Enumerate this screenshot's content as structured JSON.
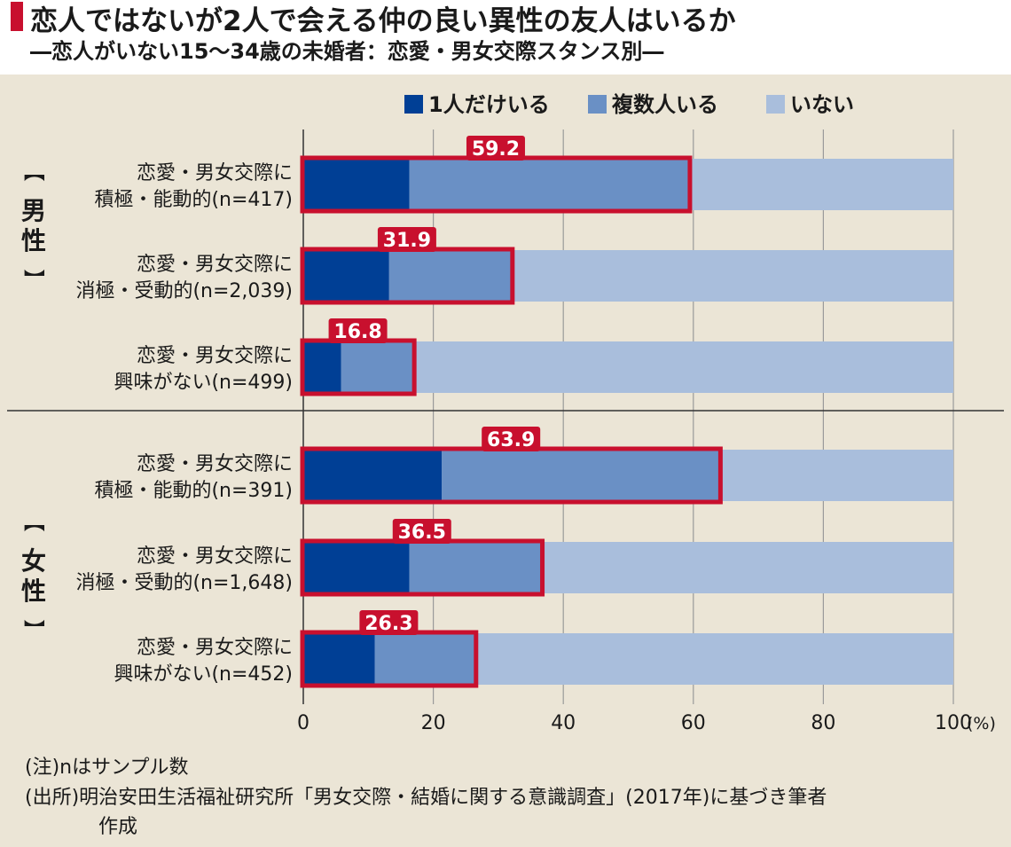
{
  "header": {
    "title": "恋人ではないが2人で会える仲の良い異性の友人はいるか",
    "subtitle": "―恋人がいない15〜34歳の未婚者：恋愛・男女交際スタンス別―"
  },
  "chart_data": {
    "type": "bar",
    "orientation": "horizontal",
    "stacked": true,
    "xlim": [
      0,
      100
    ],
    "x_ticks": [
      "0",
      "20",
      "40",
      "60",
      "80",
      "100"
    ],
    "x_unit": "(%)",
    "legend": [
      "1人だけいる",
      "複数人いる",
      "いない"
    ],
    "legend_position": "top",
    "colors": {
      "one": "#003f95",
      "multiple": "#6a90c5",
      "none": "#a9bedc",
      "highlight": "#c8102e"
    },
    "groups": [
      {
        "label_top": "【",
        "label": "男性",
        "label_bottom": "】"
      },
      {
        "label_top": "【",
        "label": "女性",
        "label_bottom": "】"
      }
    ],
    "rows": [
      {
        "group": 0,
        "line1": "恋愛・男女交際に",
        "line2": "積極・能動的(n=417)",
        "one": 16.3,
        "multiple": 42.9,
        "total_label": "59.2"
      },
      {
        "group": 0,
        "line1": "恋愛・男女交際に",
        "line2": "消極・受動的(n=2,039)",
        "one": 13.2,
        "multiple": 18.7,
        "total_label": "31.9"
      },
      {
        "group": 0,
        "line1": "恋愛・男女交際に",
        "line2": "興味がない(n=499)",
        "one": 5.8,
        "multiple": 11.0,
        "total_label": "16.8"
      },
      {
        "group": 1,
        "line1": "恋愛・男女交際に",
        "line2": "積極・能動的(n=391)",
        "one": 21.3,
        "multiple": 42.6,
        "total_label": "63.9"
      },
      {
        "group": 1,
        "line1": "恋愛・男女交際に",
        "line2": "消極・受動的(n=1,648)",
        "one": 16.3,
        "multiple": 20.2,
        "total_label": "36.5"
      },
      {
        "group": 1,
        "line1": "恋愛・男女交際に",
        "line2": "興味がない(n=452)",
        "one": 11.0,
        "multiple": 15.3,
        "total_label": "26.3"
      }
    ]
  },
  "notes": {
    "note": "(注)nはサンプル数",
    "source_line1": "(出所)明治安田生活福祉研究所「男女交際・結婚に関する意識調査」(2017年)に基づき筆者",
    "source_line2": "作成"
  }
}
